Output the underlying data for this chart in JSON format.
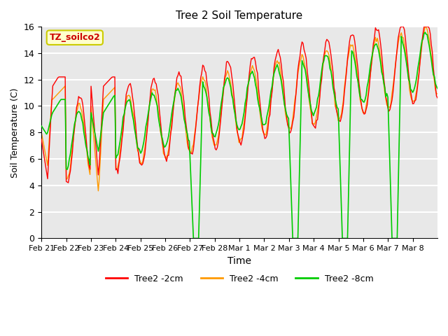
{
  "title": "Tree 2 Soil Temperature",
  "xlabel": "Time",
  "ylabel": "Soil Temperature (C)",
  "ylim": [
    0,
    16
  ],
  "yticks": [
    0,
    2,
    4,
    6,
    8,
    10,
    12,
    14,
    16
  ],
  "xtick_labels": [
    "Feb 21",
    "Feb 22",
    "Feb 23",
    "Feb 24",
    "Feb 25",
    "Feb 26",
    "Feb 27",
    "Feb 28",
    "Mar 1",
    "Mar 2",
    "Mar 3",
    "Mar 4",
    "Mar 5",
    "Mar 6",
    "Mar 7",
    "Mar 8"
  ],
  "annotation_text": "TZ_soilco2",
  "annotation_bg": "#ffffcc",
  "annotation_border": "#cccc00",
  "line_colors": {
    "2cm": "#ff0000",
    "4cm": "#ff9900",
    "8cm": "#00cc00"
  },
  "legend_labels": [
    "Tree2 -2cm",
    "Tree2 -4cm",
    "Tree2 -8cm"
  ],
  "plot_bg": "#e8e8e8",
  "grid_color": "#ffffff"
}
